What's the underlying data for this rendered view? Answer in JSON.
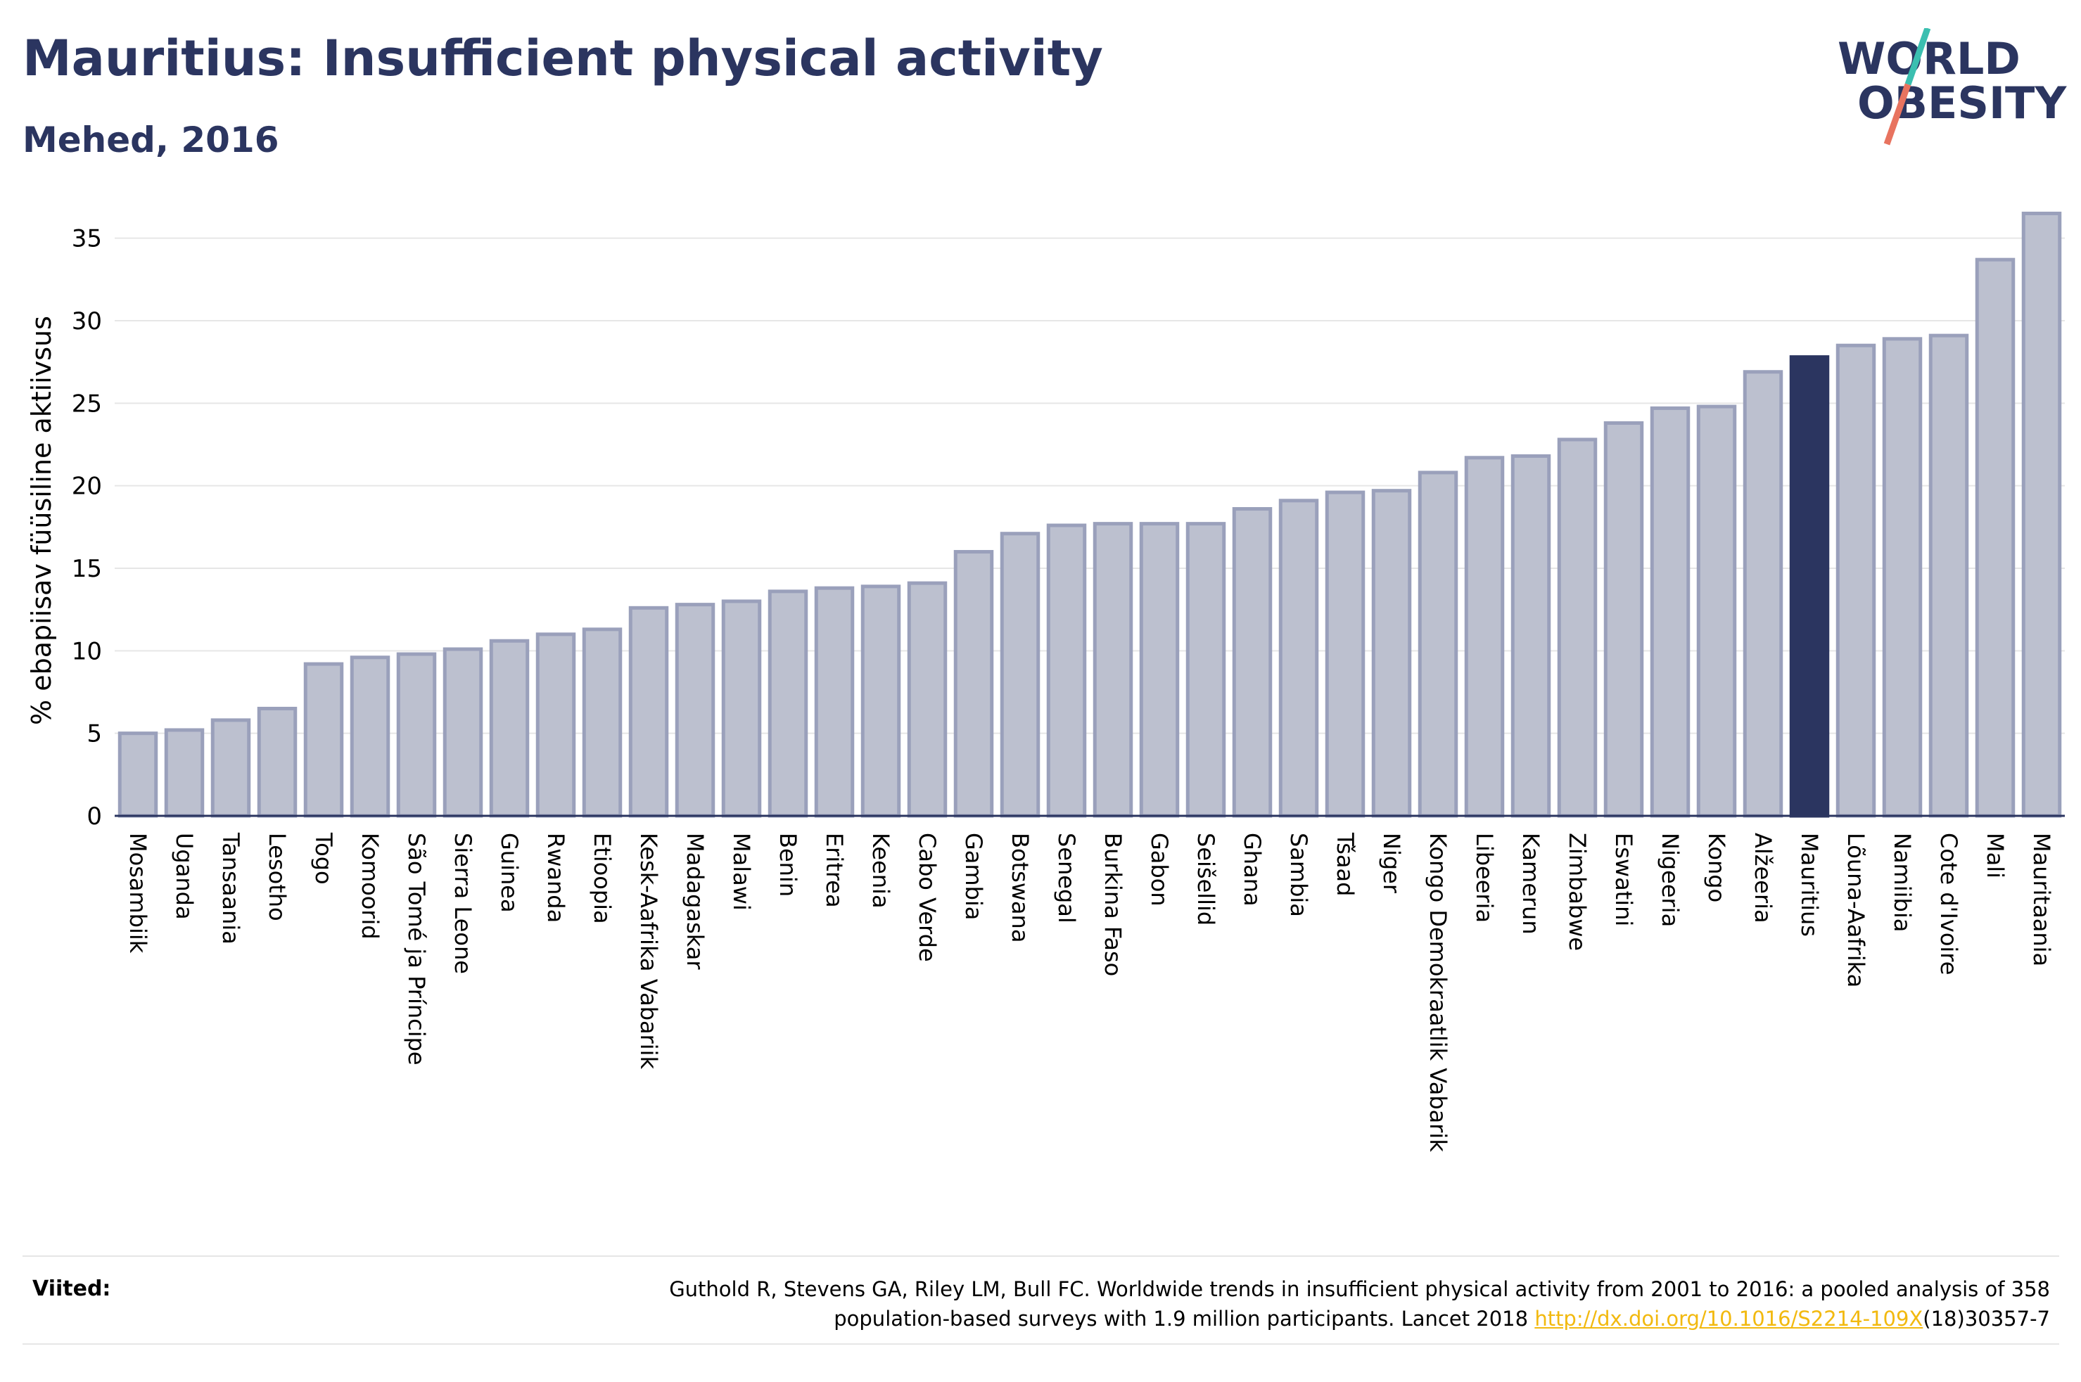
{
  "header": {
    "title": "Mauritius: Insufficient physical activity",
    "subtitle": "Mehed, 2016"
  },
  "logo": {
    "line1": "WORLD",
    "line2": "OBESITY",
    "colors": {
      "text": "#2b3560",
      "slash_top": "#3bbfb0",
      "slash_bottom": "#e8735f"
    }
  },
  "footer": {
    "sources_label": "Viited:",
    "sources_line1": "Guthold R, Stevens GA, Riley LM, Bull FC. Worldwide trends in insufficient physical activity from 2001 to 2016: a pooled analysis of 358",
    "sources_line2_prefix": "population-based surveys with 1.9 million participants. Lancet 2018 ",
    "sources_link": "http://dx.doi.org/10.1016/S2214-109X",
    "sources_line2_suffix": "(18)30357-7"
  },
  "colors": {
    "bar_default": "#bcc0cf",
    "bar_border": "#9aa0bb",
    "bar_highlight": "#2b3560",
    "gridline": "#e6e6e6",
    "axis": "#2b3560"
  },
  "chart_data": {
    "type": "bar",
    "title": "Mauritius: Insufficient physical activity",
    "subtitle": "Mehed, 2016",
    "xlabel": "",
    "ylabel": "% ebapiisav füüsiline aktiivsus",
    "ylim": [
      0,
      37.5
    ],
    "yticks": [
      0,
      5,
      10,
      15,
      20,
      25,
      30,
      35
    ],
    "grid": true,
    "highlight": "Mauritius",
    "categories": [
      "Mosambiik",
      "Uganda",
      "Tansaania",
      "Lesotho",
      "Togo",
      "Komoorid",
      "São Tomé ja Príncipe",
      "Sierra Leone",
      "Guinea",
      "Rwanda",
      "Etioopia",
      "Kesk-Aafrika Vabariik",
      "Madagaskar",
      "Malawi",
      "Benin",
      "Eritrea",
      "Keenia",
      "Cabo Verde",
      "Gambia",
      "Botswana",
      "Senegal",
      "Burkina Faso",
      "Gabon",
      "Seišellid",
      "Ghana",
      "Sambia",
      "Tšaad",
      "Niger",
      "Kongo Demokraatlik Vabarik",
      "Libeeria",
      "Kamerun",
      "Zimbabwe",
      "Eswatini",
      "Nigeeria",
      "Kongo",
      "Alžeeria",
      "Mauritius",
      "Lõuna-Aafrika",
      "Namiibia",
      "Cote d'Ivoire",
      "Mali",
      "Mauritaania"
    ],
    "values": [
      5.0,
      5.2,
      5.8,
      6.5,
      9.2,
      9.6,
      9.8,
      10.1,
      10.6,
      11.0,
      11.3,
      12.6,
      12.8,
      13.0,
      13.6,
      13.8,
      13.9,
      14.1,
      16.0,
      17.1,
      17.6,
      17.7,
      17.7,
      17.7,
      18.6,
      19.1,
      19.6,
      19.7,
      20.8,
      21.7,
      21.8,
      22.8,
      23.8,
      24.7,
      24.8,
      26.9,
      27.8,
      28.5,
      28.9,
      29.1,
      33.7,
      36.5
    ]
  }
}
